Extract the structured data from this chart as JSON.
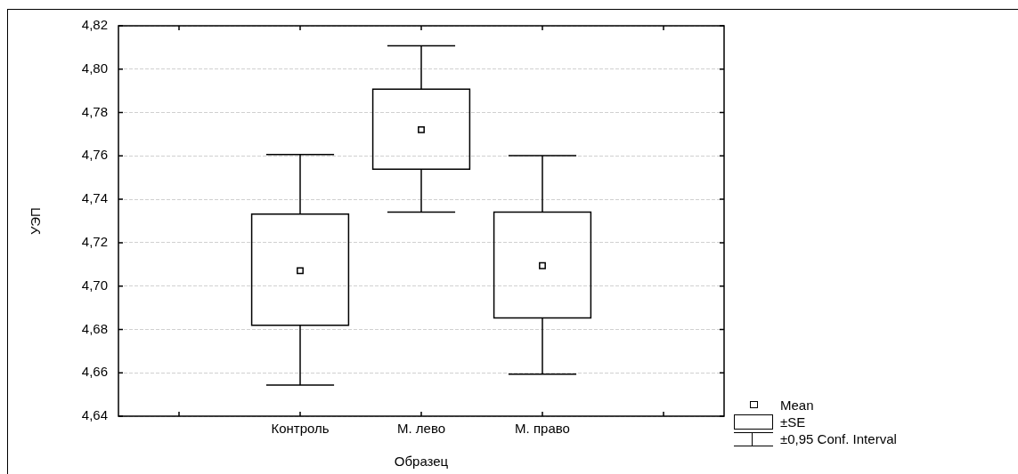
{
  "chart_data": {
    "type": "box",
    "xlabel": "Образец",
    "ylabel": "УЭП",
    "categories": [
      null,
      "Контроль",
      "М. лево",
      "М. право",
      null
    ],
    "series": [
      {
        "color": "#000000",
        "boxes": [
          null,
          {
            "low": 4.6543,
            "q1": 4.6819,
            "median": null,
            "q3": 4.7332,
            "high": 4.7606,
            "mean": 4.7071
          },
          {
            "low": 4.7341,
            "q1": 4.7539,
            "median": null,
            "q3": 4.7908,
            "high": 4.8108,
            "mean": 4.7721
          },
          {
            "low": 4.6594,
            "q1": 4.6853,
            "median": null,
            "q3": 4.7341,
            "high": 4.7601,
            "mean": 4.7094
          },
          null
        ]
      }
    ],
    "ylim": [
      4.64,
      4.82
    ],
    "yticks": [
      {
        "value": 4.64,
        "label": "4,64"
      },
      {
        "value": 4.66,
        "label": "4,66"
      },
      {
        "value": 4.68,
        "label": "4,68"
      },
      {
        "value": 4.7,
        "label": "4,70"
      },
      {
        "value": 4.72,
        "label": "4,72"
      },
      {
        "value": 4.74,
        "label": "4,74"
      },
      {
        "value": 4.76,
        "label": "4,76"
      },
      {
        "value": 4.78,
        "label": "4,78"
      },
      {
        "value": 4.8,
        "label": "4,80"
      },
      {
        "value": 4.82,
        "label": "4,82"
      }
    ],
    "grid": "y",
    "marker": "square",
    "annotations": [
      "Mean",
      "±SE",
      "±0,95 Conf. Interval"
    ]
  }
}
